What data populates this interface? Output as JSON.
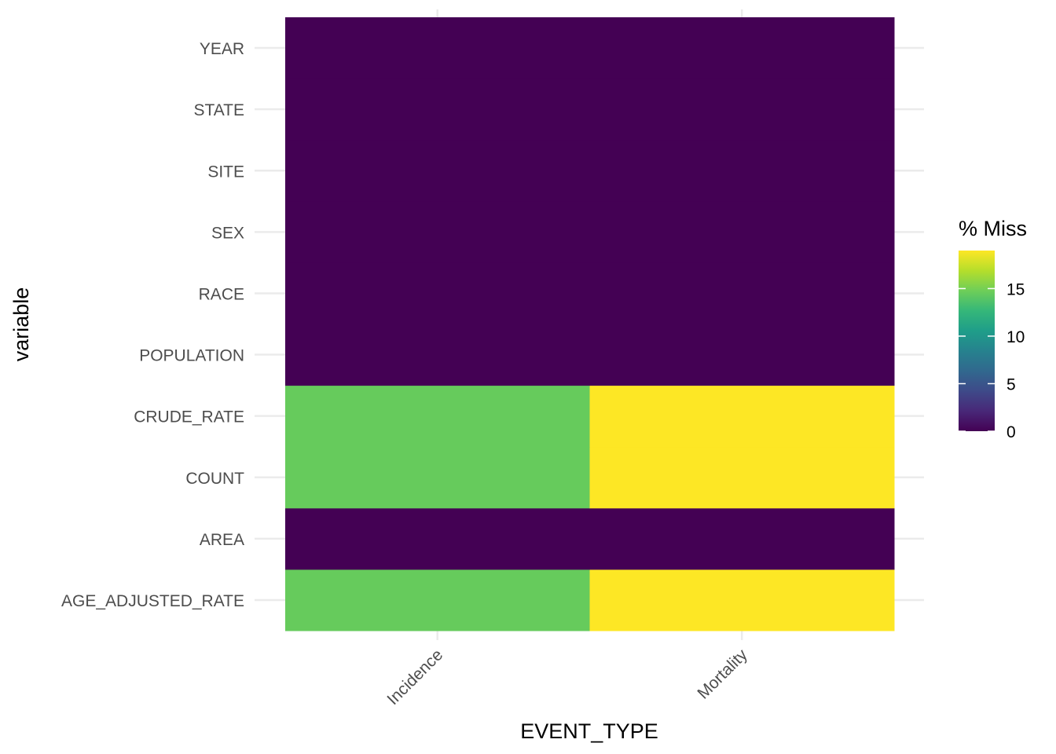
{
  "chart_data": {
    "type": "heatmap",
    "x_categories": [
      "Incidence",
      "Mortality"
    ],
    "y_categories": [
      "AGE_ADJUSTED_RATE",
      "AREA",
      "COUNT",
      "CRUDE_RATE",
      "POPULATION",
      "RACE",
      "SEX",
      "SITE",
      "STATE",
      "YEAR"
    ],
    "values": [
      [
        14.5,
        19.0
      ],
      [
        0,
        0
      ],
      [
        14.5,
        19.0
      ],
      [
        14.5,
        19.0
      ],
      [
        0,
        0
      ],
      [
        0,
        0
      ],
      [
        0,
        0
      ],
      [
        0,
        0
      ],
      [
        0,
        0
      ],
      [
        0,
        0
      ]
    ],
    "xlabel": "EVENT_TYPE",
    "ylabel": "variable",
    "legend": {
      "title": "% Miss",
      "ticks": [
        0,
        5,
        10,
        15
      ],
      "range": [
        0,
        19
      ],
      "placement": "right",
      "colormap": "viridis"
    },
    "grid": true
  }
}
